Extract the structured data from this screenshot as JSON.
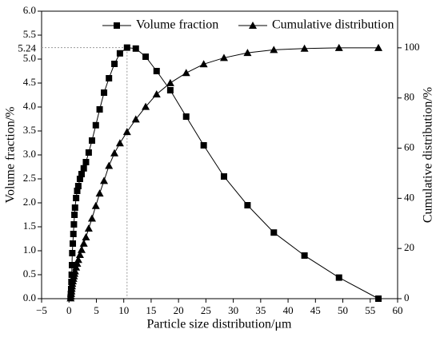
{
  "chart_data": {
    "type": "line",
    "xlabel": "Particle size distribution/μm",
    "ylabel": "Volume fraction/%",
    "y2label": "Cumulative distribution/%",
    "legend": "upper center",
    "x": [
      0.3,
      0.35,
      0.4,
      0.45,
      0.5,
      0.55,
      0.6,
      0.7,
      0.8,
      0.9,
      1.0,
      1.1,
      1.3,
      1.5,
      1.7,
      2.0,
      2.3,
      2.7,
      3.1,
      3.6,
      4.2,
      4.9,
      5.6,
      6.4,
      7.3,
      8.3,
      9.3,
      10.6,
      12.2,
      14.0,
      16.0,
      18.5,
      21.4,
      24.6,
      28.3,
      32.6,
      37.4,
      43.0,
      49.3,
      56.5
    ],
    "series": [
      {
        "name": "Volume fraction",
        "color": "#000000",
        "marker": "square",
        "values": [
          0.02,
          0.1,
          0.2,
          0.35,
          0.5,
          0.7,
          0.95,
          1.15,
          1.35,
          1.55,
          1.75,
          1.9,
          2.1,
          2.25,
          2.35,
          2.5,
          2.6,
          2.72,
          2.85,
          3.05,
          3.3,
          3.62,
          3.95,
          4.3,
          4.6,
          4.9,
          5.12,
          5.24,
          5.22,
          5.05,
          4.75,
          4.35,
          3.8,
          3.2,
          2.55,
          1.95,
          1.38,
          0.9,
          0.44,
          0.0
        ]
      },
      {
        "name": "Cumulative distribution",
        "color": "#000000",
        "marker": "triangle",
        "axis": "y2",
        "values": [
          0.2,
          1,
          2,
          3,
          4,
          5,
          6,
          7,
          8,
          9,
          10,
          11,
          12.5,
          14,
          15.5,
          17.5,
          19.5,
          22,
          24.5,
          28,
          32,
          37,
          42,
          47,
          53,
          58,
          62,
          66.5,
          71.5,
          76.5,
          81.5,
          86,
          90,
          93.5,
          96,
          98,
          99.2,
          99.7,
          100,
          100
        ]
      }
    ],
    "annotations": [
      {
        "text": "5.24",
        "x": 10.6,
        "y": 5.24
      }
    ],
    "xlim": [
      -5,
      60
    ],
    "xticks": [
      {
        "value": -5,
        "label": "−5"
      },
      0,
      5,
      10,
      15,
      20,
      25,
      30,
      35,
      40,
      45,
      50,
      55,
      60
    ],
    "ylim": [
      0,
      6
    ],
    "yticks": [
      {
        "value": 0,
        "label": "0.0"
      },
      0.5,
      {
        "value": 1,
        "label": "1.0"
      },
      1.5,
      {
        "value": 2,
        "label": "2.0"
      },
      2.5,
      {
        "value": 3,
        "label": "3.0"
      },
      3.5,
      {
        "value": 4,
        "label": "4.0"
      },
      4.5,
      {
        "value": 5,
        "label": "5.0"
      },
      5.5,
      {
        "value": 6,
        "label": "6.0"
      }
    ],
    "y2lim": [
      0,
      114.6
    ],
    "y2ticks": [
      0,
      20,
      40,
      60,
      80,
      100
    ]
  }
}
